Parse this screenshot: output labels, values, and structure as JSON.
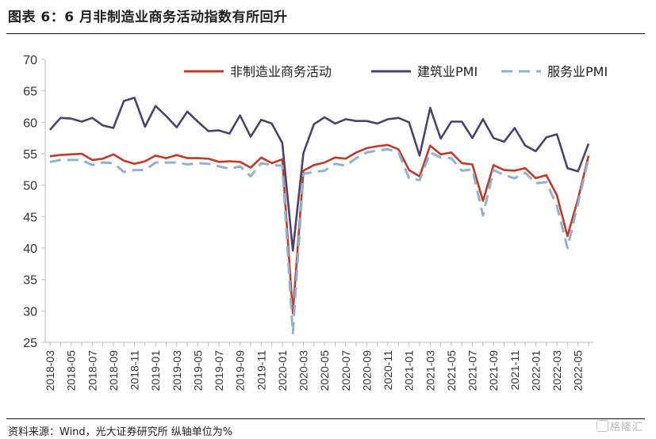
{
  "figure": {
    "title": "图表 6：6 月非制造业商务活动指数有所回升",
    "source": "资料来源：Wind，光大证券研究所    纵轴单位为%",
    "watermark": "格隆汇"
  },
  "chart_data": {
    "type": "line",
    "title": "",
    "xlabel": "",
    "ylabel": "",
    "ylim": [
      25,
      70
    ],
    "yticks": [
      25,
      30,
      35,
      40,
      45,
      50,
      55,
      60,
      65,
      70
    ],
    "grid": false,
    "legend_position": "top",
    "categories": [
      "2018-03",
      "2018-04",
      "2018-05",
      "2018-06",
      "2018-07",
      "2018-08",
      "2018-09",
      "2018-10",
      "2018-11",
      "2018-12",
      "2019-01",
      "2019-02",
      "2019-03",
      "2019-04",
      "2019-05",
      "2019-06",
      "2019-07",
      "2019-08",
      "2019-09",
      "2019-10",
      "2019-11",
      "2019-12",
      "2020-01",
      "2020-02",
      "2020-03",
      "2020-04",
      "2020-05",
      "2020-06",
      "2020-07",
      "2020-08",
      "2020-09",
      "2020-10",
      "2020-11",
      "2020-12",
      "2021-01",
      "2021-02",
      "2021-03",
      "2021-04",
      "2021-05",
      "2021-06",
      "2021-07",
      "2021-08",
      "2021-09",
      "2021-10",
      "2021-11",
      "2021-12",
      "2022-01",
      "2022-02",
      "2022-03",
      "2022-04",
      "2022-05",
      "2022-06"
    ],
    "tick_labels": [
      "2018-03",
      "2018-05",
      "2018-07",
      "2018-09",
      "2018-11",
      "2019-01",
      "2019-03",
      "2019-05",
      "2019-07",
      "2019-09",
      "2019-11",
      "2020-01",
      "2020-03",
      "2020-05",
      "2020-07",
      "2020-09",
      "2020-11",
      "2021-01",
      "2021-03",
      "2021-05",
      "2021-07",
      "2021-09",
      "2021-11",
      "2022-01",
      "2022-03",
      "2022-05"
    ],
    "series": [
      {
        "name": "非制造业商务活动",
        "color": "#c0392b",
        "style": "solid",
        "values": [
          54.6,
          54.8,
          54.9,
          55.0,
          54.0,
          54.2,
          54.9,
          53.9,
          53.4,
          53.8,
          54.7,
          54.3,
          54.8,
          54.3,
          54.3,
          54.2,
          53.7,
          53.8,
          53.7,
          52.8,
          54.4,
          53.5,
          54.1,
          29.6,
          52.3,
          53.2,
          53.6,
          54.4,
          54.2,
          55.2,
          55.9,
          56.2,
          56.4,
          55.7,
          52.4,
          51.4,
          56.3,
          54.9,
          55.2,
          53.5,
          53.3,
          47.5,
          53.2,
          52.4,
          52.3,
          52.7,
          51.1,
          51.6,
          48.4,
          41.9,
          47.8,
          54.7
        ]
      },
      {
        "name": "建筑业PMI",
        "color": "#4a4566",
        "style": "solid",
        "values": [
          58.8,
          60.7,
          60.6,
          60.1,
          60.7,
          59.5,
          59.1,
          63.4,
          63.9,
          59.3,
          62.6,
          61.0,
          59.2,
          61.7,
          60.1,
          58.6,
          58.7,
          58.2,
          61.1,
          57.7,
          60.4,
          59.8,
          56.7,
          39.6,
          55.1,
          59.7,
          60.8,
          59.8,
          60.5,
          60.2,
          60.2,
          59.8,
          60.5,
          60.7,
          60.0,
          54.7,
          62.3,
          57.4,
          60.1,
          60.1,
          57.5,
          60.5,
          57.5,
          56.9,
          59.1,
          56.3,
          55.4,
          57.6,
          58.1,
          52.7,
          52.2,
          56.6
        ]
      },
      {
        "name": "服务业PMI",
        "color": "#8fb3cc",
        "style": "dashed",
        "values": [
          53.7,
          54.0,
          54.0,
          54.0,
          53.2,
          53.6,
          53.5,
          52.1,
          52.4,
          52.4,
          53.6,
          53.6,
          53.6,
          53.3,
          53.5,
          53.4,
          53.0,
          52.6,
          53.0,
          51.4,
          53.5,
          53.2,
          53.1,
          26.5,
          51.8,
          52.1,
          52.3,
          53.4,
          53.1,
          54.3,
          55.2,
          55.5,
          55.7,
          55.2,
          51.1,
          50.8,
          55.2,
          54.4,
          54.3,
          52.3,
          52.5,
          45.2,
          52.4,
          51.6,
          51.1,
          52.0,
          50.3,
          50.5,
          46.7,
          40.0,
          47.1,
          54.3
        ]
      }
    ]
  }
}
